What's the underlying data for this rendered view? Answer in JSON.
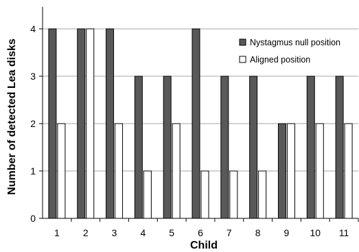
{
  "chart_data": {
    "type": "bar",
    "xlabel": "Child",
    "ylabel": "Number of detected Lea disks",
    "categories": [
      "1",
      "2",
      "3",
      "4",
      "5",
      "6",
      "7",
      "8",
      "9",
      "10",
      "11"
    ],
    "series": [
      {
        "name": "Nystagmus null position",
        "values": [
          4,
          4,
          4,
          3,
          3,
          4,
          3,
          3,
          2,
          3,
          3
        ],
        "color": "#595959"
      },
      {
        "name": "Aligned position",
        "values": [
          2,
          4,
          2,
          1,
          2,
          1,
          1,
          1,
          2,
          2,
          2
        ],
        "color": "#ffffff"
      }
    ],
    "ylim": [
      0,
      4
    ],
    "yticks": [
      0,
      1,
      2,
      3,
      4
    ],
    "grid": true,
    "legend": "top-right"
  }
}
